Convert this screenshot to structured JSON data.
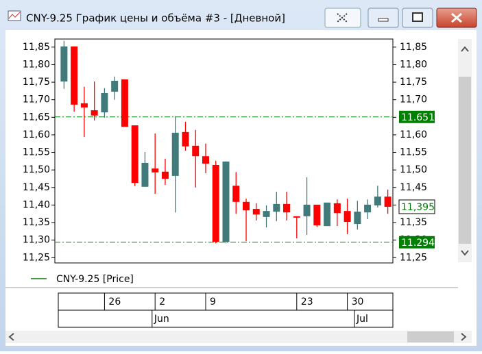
{
  "window": {
    "title": "CNY-9.25 График цены и объёма #3 - [Дневной]"
  },
  "chart_data": {
    "type": "candlestick",
    "categories": [
      null,
      null,
      null,
      null,
      "26",
      null,
      null,
      null,
      null,
      "2",
      null,
      null,
      null,
      null,
      "9",
      null,
      null,
      null,
      null,
      null,
      null,
      null,
      null,
      "23",
      null,
      null,
      null,
      null,
      "30",
      null,
      null,
      null,
      null
    ],
    "months": [
      null,
      null,
      null,
      null,
      null,
      null,
      null,
      null,
      null,
      "Jun",
      null,
      null,
      null,
      null,
      null,
      null,
      null,
      null,
      null,
      null,
      null,
      null,
      null,
      null,
      null,
      null,
      null,
      null,
      null,
      "Jul",
      null,
      null,
      null
    ],
    "series": [
      {
        "name": "CNY-9.25 [Price]",
        "color": "#008000",
        "open": [
          11.752,
          11.852,
          11.69,
          11.67,
          11.664,
          11.723,
          11.758,
          11.627,
          11.452,
          11.504,
          11.495,
          11.483,
          11.608,
          11.569,
          11.539,
          11.514,
          11.295,
          11.455,
          11.409,
          11.389,
          11.366,
          11.381,
          11.403,
          11.368,
          11.368,
          11.401,
          11.34,
          11.405,
          11.383,
          11.346,
          11.379,
          11.399,
          11.424
        ],
        "high": [
          11.868,
          11.852,
          11.737,
          11.752,
          11.733,
          11.766,
          11.758,
          11.627,
          11.551,
          11.604,
          11.532,
          11.653,
          11.637,
          11.614,
          11.575,
          11.526,
          11.524,
          11.494,
          11.418,
          11.405,
          11.399,
          11.438,
          11.438,
          11.368,
          11.479,
          11.401,
          11.407,
          11.416,
          11.418,
          11.412,
          11.416,
          11.455,
          11.444
        ],
        "low": [
          11.731,
          11.666,
          11.594,
          11.641,
          11.649,
          11.7,
          11.623,
          11.454,
          11.452,
          11.432,
          11.457,
          11.379,
          11.555,
          11.45,
          11.491,
          11.291,
          11.291,
          11.375,
          11.297,
          11.356,
          11.336,
          11.354,
          11.356,
          11.305,
          11.315,
          11.338,
          11.34,
          11.34,
          11.317,
          11.33,
          11.36,
          11.393,
          11.375
        ],
        "close": [
          11.852,
          11.686,
          11.678,
          11.655,
          11.719,
          11.754,
          11.623,
          11.463,
          11.52,
          11.493,
          11.475,
          11.606,
          11.567,
          11.539,
          11.518,
          11.295,
          11.524,
          11.409,
          11.385,
          11.373,
          11.383,
          11.403,
          11.379,
          11.364,
          11.401,
          11.342,
          11.407,
          11.377,
          11.352,
          11.381,
          11.401,
          11.424,
          11.395
        ]
      }
    ],
    "up_color": "#407a7a",
    "down_color": "#ff0000",
    "ylim": [
      11.235,
      11.873
    ],
    "yticks": [
      {
        "value": 11.25,
        "label": "11,25"
      },
      {
        "value": 11.3,
        "label": "11,30"
      },
      {
        "value": 11.35,
        "label": "11,35"
      },
      {
        "value": 11.4,
        "label": "11,40"
      },
      {
        "value": 11.45,
        "label": "11,45"
      },
      {
        "value": 11.5,
        "label": "11,50"
      },
      {
        "value": 11.55,
        "label": "11,55"
      },
      {
        "value": 11.6,
        "label": "11,60"
      },
      {
        "value": 11.65,
        "label": "11,65"
      },
      {
        "value": 11.7,
        "label": "11,70"
      },
      {
        "value": 11.75,
        "label": "11,75"
      },
      {
        "value": 11.8,
        "label": "11,80"
      },
      {
        "value": 11.85,
        "label": "11,85"
      }
    ],
    "hlines": [
      11.651,
      11.294
    ],
    "hline_color": "#008000",
    "last_price": {
      "value": 11.395,
      "label": "11,395"
    }
  }
}
